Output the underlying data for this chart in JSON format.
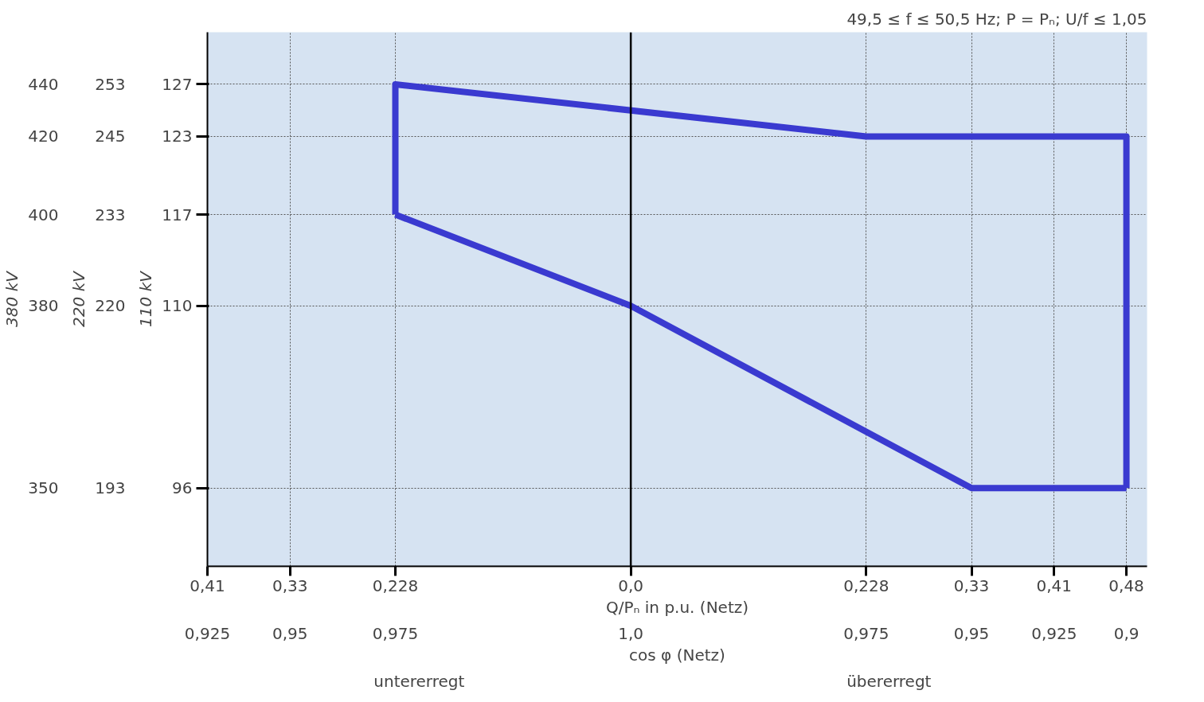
{
  "chart_data": {
    "type": "line",
    "title": "49,5 ≤ f ≤ 50,5 Hz; P = Pₙ; U/f ≤ 1,05",
    "xlabel": "Q/Pₙ in p.u. (Netz)",
    "annotations": [
      "380 kV",
      "220 kV",
      "110 kV",
      "cos φ (Netz)",
      "untererregt",
      "übererregt",
      "350",
      "380",
      "400",
      "420",
      "440",
      "193",
      "220",
      "233",
      "245",
      "253",
      "0,925",
      "0,95",
      "0,975",
      "1,0",
      "0,975",
      "0,95",
      "0,925",
      "0,9"
    ],
    "series": [
      {
        "color": "#3a3ad0",
        "x": [
          -0.228,
          -0.228,
          0.228,
          0.48,
          0.48
        ],
        "values": [
          117,
          127,
          123,
          123,
          96
        ]
      },
      {
        "color": "#3a3ad0",
        "x": [
          -0.228,
          0,
          0.33,
          0.48
        ],
        "values": [
          117,
          110,
          96,
          96
        ]
      }
    ],
    "xlim": [
      -0.41,
      0.5
    ],
    "ylim": [
      90,
      131
    ],
    "xticks": [
      {
        "value": -0.41,
        "label": "0,41"
      },
      {
        "value": -0.33,
        "label": "0,33"
      },
      {
        "value": -0.228,
        "label": "0,228"
      },
      {
        "value": 0,
        "label": "0,0"
      },
      {
        "value": 0.228,
        "label": "0,228"
      },
      {
        "value": 0.33,
        "label": "0,33"
      },
      {
        "value": 0.41,
        "label": "0,41"
      },
      {
        "value": 0.48,
        "label": "0,48"
      }
    ],
    "yticks": [
      96,
      110,
      117,
      123,
      127
    ],
    "ref_lines": [
      {
        "axis": "x",
        "value": 0,
        "color": "#000000"
      }
    ],
    "grid": true,
    "marker": "none",
    "line_style": "solid"
  }
}
